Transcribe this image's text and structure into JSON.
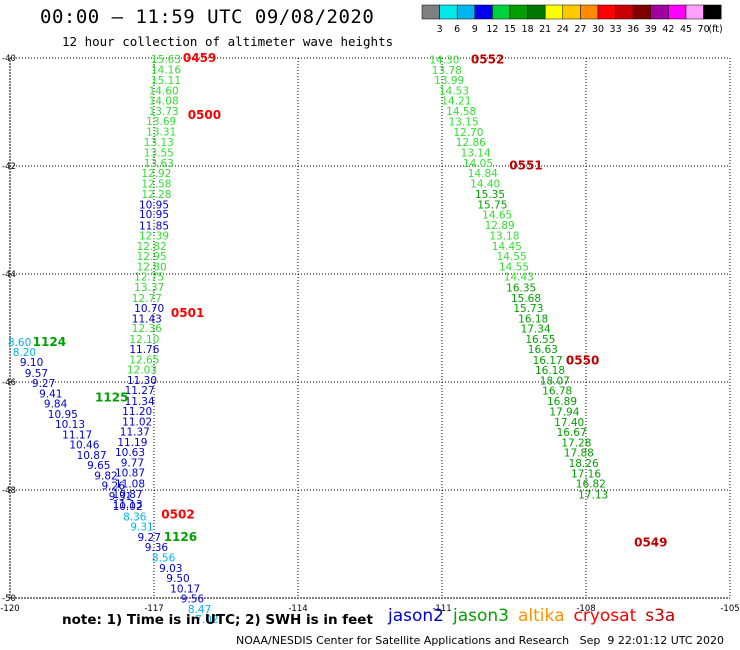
{
  "header": {
    "title": "00:00 – 11:59 UTC 09/08/2020",
    "subtitle": "12 hour collection of altimeter wave heights"
  },
  "colorbar": {
    "unit": "(ft)",
    "ticks": [
      "3",
      "6",
      "9",
      "12",
      "15",
      "18",
      "21",
      "24",
      "27",
      "30",
      "33",
      "36",
      "39",
      "42",
      "45",
      "70"
    ],
    "colors": [
      "#808080",
      "#00e8e8",
      "#00b4f0",
      "#0000f0",
      "#00d040",
      "#00a000",
      "#007800",
      "#ffff00",
      "#ffc800",
      "#ff8c00",
      "#ff0000",
      "#c80000",
      "#800000",
      "#a000a0",
      "#ff00ff",
      "#ffa0ff",
      "#000000"
    ]
  },
  "axes": {
    "lat_labels": [
      "-40",
      "-42",
      "-44",
      "-46",
      "-48",
      "-50"
    ],
    "lon_labels": [
      "-120",
      "-117",
      "-114",
      "-111",
      "-108",
      "-105"
    ]
  },
  "note": "note: 1) Time is in UTC; 2) SWH is in feet",
  "satellites": [
    {
      "name": "jason2",
      "color": "#0000d0"
    },
    {
      "name": "jason3",
      "color": "#00a000"
    },
    {
      "name": "altika",
      "color": "#ff9000"
    },
    {
      "name": "cryosat",
      "color": "#ff0000"
    },
    {
      "name": "s3a",
      "color": "#c00000"
    }
  ],
  "credit": "NOAA/NESDIS Center for Satellite Applications and Research   Sep  9 22:01:12 UTC 2020",
  "chart_data": {
    "type": "scatter",
    "title": "12 hour collection of altimeter wave heights",
    "xlabel": "",
    "ylabel": "",
    "xlim": [
      -120,
      -105
    ],
    "ylim": [
      -50,
      -40
    ],
    "unit": "ft",
    "time_labels": [
      {
        "text": "0459",
        "lon": -116.05,
        "lat": -40.0,
        "sat": "cryosat"
      },
      {
        "text": "0500",
        "lon": -115.95,
        "lat": -41.06,
        "sat": "cryosat"
      },
      {
        "text": "0501",
        "lon": -116.3,
        "lat": -44.72,
        "sat": "cryosat"
      },
      {
        "text": "0502",
        "lon": -116.5,
        "lat": -48.45,
        "sat": "cryosat"
      },
      {
        "text": "1124",
        "lon": -119.18,
        "lat": -45.26,
        "sat": "jason3"
      },
      {
        "text": "1125",
        "lon": -117.88,
        "lat": -46.29,
        "sat": "jason3"
      },
      {
        "text": "1126",
        "lon": -116.45,
        "lat": -48.87,
        "sat": "jason3"
      },
      {
        "text": "0552",
        "lon": -110.05,
        "lat": -40.03,
        "sat": "s3a"
      },
      {
        "text": "0551",
        "lon": -109.25,
        "lat": -41.99,
        "sat": "s3a"
      },
      {
        "text": "0550",
        "lon": -108.07,
        "lat": -45.6,
        "sat": "s3a"
      },
      {
        "text": "0549",
        "lon": -106.65,
        "lat": -48.97,
        "sat": "s3a"
      }
    ],
    "series": [
      {
        "name": "cryosat",
        "color": "#33dd33",
        "points": [
          {
            "lon": -116.75,
            "lat": -40.02,
            "v": "15.63"
          },
          {
            "lon": -116.75,
            "lat": -40.21,
            "v": "14.16"
          },
          {
            "lon": -116.75,
            "lat": -40.41,
            "v": "15.11"
          },
          {
            "lon": -116.8,
            "lat": -40.6,
            "v": "14.60"
          },
          {
            "lon": -116.8,
            "lat": -40.79,
            "v": "14.08"
          },
          {
            "lon": -116.8,
            "lat": -40.98,
            "v": "13.73"
          },
          {
            "lon": -116.85,
            "lat": -41.17,
            "v": "13.69"
          },
          {
            "lon": -116.85,
            "lat": -41.36,
            "v": "13.31"
          },
          {
            "lon": -116.9,
            "lat": -41.56,
            "v": "13.13"
          },
          {
            "lon": -116.9,
            "lat": -41.75,
            "v": "13.55"
          },
          {
            "lon": -116.9,
            "lat": -41.94,
            "v": "13.63"
          },
          {
            "lon": -116.95,
            "lat": -42.13,
            "v": "12.92"
          },
          {
            "lon": -116.95,
            "lat": -42.32,
            "v": "12.58"
          },
          {
            "lon": -116.95,
            "lat": -42.52,
            "v": "12.28"
          },
          {
            "lon": -117.0,
            "lat": -42.71,
            "v": "10.95",
            "color": "#0000d0"
          },
          {
            "lon": -117.0,
            "lat": -42.89,
            "v": "10.95",
            "color": "#0000d0"
          },
          {
            "lon": -117.0,
            "lat": -43.1,
            "v": "11.85",
            "color": "#0000d0"
          },
          {
            "lon": -117.0,
            "lat": -43.29,
            "v": "12.39"
          },
          {
            "lon": -117.05,
            "lat": -43.48,
            "v": "12.82"
          },
          {
            "lon": -117.05,
            "lat": -43.67,
            "v": "12.95"
          },
          {
            "lon": -117.05,
            "lat": -43.86,
            "v": "12.80"
          },
          {
            "lon": -117.1,
            "lat": -44.05,
            "v": "12.75"
          },
          {
            "lon": -117.1,
            "lat": -44.24,
            "v": "13.37"
          },
          {
            "lon": -117.15,
            "lat": -44.44,
            "v": "12.77"
          },
          {
            "lon": -117.1,
            "lat": -44.63,
            "v": "10.70",
            "color": "#0000d0"
          },
          {
            "lon": -117.15,
            "lat": -44.82,
            "v": "11.43",
            "color": "#0000d0"
          },
          {
            "lon": -117.15,
            "lat": -45.0,
            "v": "12.36"
          },
          {
            "lon": -117.2,
            "lat": -45.2,
            "v": "12.10"
          },
          {
            "lon": -117.2,
            "lat": -45.39,
            "v": "11.76",
            "color": "#0000d0"
          },
          {
            "lon": -117.2,
            "lat": -45.58,
            "v": "12.65"
          },
          {
            "lon": -117.25,
            "lat": -45.77,
            "v": "12.03"
          },
          {
            "lon": -117.25,
            "lat": -45.96,
            "v": "11.30",
            "color": "#0000d0"
          },
          {
            "lon": -117.3,
            "lat": -46.15,
            "v": "11.27",
            "color": "#0000d0"
          },
          {
            "lon": -117.3,
            "lat": -46.35,
            "v": "11.34",
            "color": "#0000d0"
          },
          {
            "lon": -117.35,
            "lat": -46.54,
            "v": "11.20",
            "color": "#0000d0"
          },
          {
            "lon": -117.35,
            "lat": -46.73,
            "v": "11.02",
            "color": "#0000d0"
          },
          {
            "lon": -117.4,
            "lat": -46.92,
            "v": "11.37",
            "color": "#0000d0"
          },
          {
            "lon": -117.45,
            "lat": -47.11,
            "v": "11.19",
            "color": "#0000d0"
          },
          {
            "lon": -117.5,
            "lat": -47.3,
            "v": "10.63",
            "color": "#0000d0"
          },
          {
            "lon": -117.45,
            "lat": -47.49,
            "v": "9.77",
            "color": "#0000d0"
          },
          {
            "lon": -117.5,
            "lat": -47.68,
            "v": "10.87",
            "color": "#0000d0"
          },
          {
            "lon": -117.5,
            "lat": -47.88,
            "v": "11.08",
            "color": "#0000d0"
          },
          {
            "lon": -117.55,
            "lat": -48.07,
            "v": "10.87",
            "color": "#0000d0"
          },
          {
            "lon": -117.55,
            "lat": -48.26,
            "v": "11.13",
            "color": "#0000d0"
          }
        ]
      },
      {
        "name": "jason3",
        "color": "#0000d0",
        "points": [
          {
            "lon": -119.8,
            "lat": -45.26,
            "v": "8.60",
            "color": "#00b4f0"
          },
          {
            "lon": -119.7,
            "lat": -45.44,
            "v": "8.20",
            "color": "#00b4f0"
          },
          {
            "lon": -119.55,
            "lat": -45.63,
            "v": "9.10"
          },
          {
            "lon": -119.45,
            "lat": -45.83,
            "v": "9.57"
          },
          {
            "lon": -119.3,
            "lat": -46.02,
            "v": "9.27"
          },
          {
            "lon": -119.15,
            "lat": -46.21,
            "v": "9.41"
          },
          {
            "lon": -119.05,
            "lat": -46.4,
            "v": "9.84"
          },
          {
            "lon": -118.9,
            "lat": -46.59,
            "v": "10.95"
          },
          {
            "lon": -118.75,
            "lat": -46.78,
            "v": "10.13"
          },
          {
            "lon": -118.6,
            "lat": -46.97,
            "v": "11.17"
          },
          {
            "lon": -118.45,
            "lat": -47.16,
            "v": "10.46"
          },
          {
            "lon": -118.3,
            "lat": -47.35,
            "v": "10.87"
          },
          {
            "lon": -118.15,
            "lat": -47.54,
            "v": "9.65"
          },
          {
            "lon": -118.0,
            "lat": -47.73,
            "v": "9.82"
          },
          {
            "lon": -117.85,
            "lat": -47.92,
            "v": "9.26"
          },
          {
            "lon": -117.7,
            "lat": -48.11,
            "v": "9.31"
          },
          {
            "lon": -117.55,
            "lat": -48.3,
            "v": "10.02"
          },
          {
            "lon": -117.4,
            "lat": -48.49,
            "v": "8.36",
            "color": "#00b4f0"
          },
          {
            "lon": -117.25,
            "lat": -48.68,
            "v": "9.31",
            "color": "#00b4f0"
          },
          {
            "lon": -117.1,
            "lat": -48.87,
            "v": "9.27"
          },
          {
            "lon": -116.95,
            "lat": -49.06,
            "v": "9.36"
          },
          {
            "lon": -116.8,
            "lat": -49.25,
            "v": "8.56",
            "color": "#00b4f0"
          },
          {
            "lon": -116.65,
            "lat": -49.44,
            "v": "9.03"
          },
          {
            "lon": -116.5,
            "lat": -49.63,
            "v": "9.50"
          },
          {
            "lon": -116.35,
            "lat": -49.82,
            "v": "10.17"
          },
          {
            "lon": -116.2,
            "lat": -50.01,
            "v": "9.56"
          },
          {
            "lon": -116.05,
            "lat": -50.2,
            "v": "8.47",
            "color": "#00b4f0"
          },
          {
            "lon": -115.9,
            "lat": -50.39,
            "v": "7.02",
            "color": "#00b4f0"
          }
        ]
      },
      {
        "name": "s3a",
        "color": "#33dd33",
        "points": [
          {
            "lon": -110.95,
            "lat": -40.03,
            "v": "14.30"
          },
          {
            "lon": -110.9,
            "lat": -40.22,
            "v": "13.78"
          },
          {
            "lon": -110.85,
            "lat": -40.41,
            "v": "13.99"
          },
          {
            "lon": -110.75,
            "lat": -40.6,
            "v": "14.53"
          },
          {
            "lon": -110.7,
            "lat": -40.79,
            "v": "14.21"
          },
          {
            "lon": -110.6,
            "lat": -40.98,
            "v": "14.58"
          },
          {
            "lon": -110.55,
            "lat": -41.18,
            "v": "13.15"
          },
          {
            "lon": -110.45,
            "lat": -41.37,
            "v": "12.70"
          },
          {
            "lon": -110.4,
            "lat": -41.56,
            "v": "12.86"
          },
          {
            "lon": -110.3,
            "lat": -41.75,
            "v": "13.14"
          },
          {
            "lon": -110.25,
            "lat": -41.94,
            "v": "14.05"
          },
          {
            "lon": -110.15,
            "lat": -42.13,
            "v": "14.84"
          },
          {
            "lon": -110.1,
            "lat": -42.32,
            "v": "14.40"
          },
          {
            "lon": -110.0,
            "lat": -42.52,
            "v": "15.35",
            "color": "#00a000"
          },
          {
            "lon": -109.95,
            "lat": -42.71,
            "v": "15.75",
            "color": "#00a000"
          },
          {
            "lon": -109.85,
            "lat": -42.9,
            "v": "14.65"
          },
          {
            "lon": -109.8,
            "lat": -43.09,
            "v": "12.89"
          },
          {
            "lon": -109.7,
            "lat": -43.29,
            "v": "13.18"
          },
          {
            "lon": -109.65,
            "lat": -43.48,
            "v": "14.45"
          },
          {
            "lon": -109.55,
            "lat": -43.67,
            "v": "14.55"
          },
          {
            "lon": -109.5,
            "lat": -43.86,
            "v": "14.55"
          },
          {
            "lon": -109.4,
            "lat": -44.05,
            "v": "14.43"
          },
          {
            "lon": -109.35,
            "lat": -44.25,
            "v": "16.35",
            "color": "#00a000"
          },
          {
            "lon": -109.25,
            "lat": -44.44,
            "v": "15.68",
            "color": "#00a000"
          },
          {
            "lon": -109.2,
            "lat": -44.63,
            "v": "15.73",
            "color": "#00a000"
          },
          {
            "lon": -109.1,
            "lat": -44.82,
            "v": "16.18",
            "color": "#00a000"
          },
          {
            "lon": -109.05,
            "lat": -45.01,
            "v": "17.34",
            "color": "#00a000"
          },
          {
            "lon": -108.95,
            "lat": -45.2,
            "v": "16.55",
            "color": "#00a000"
          },
          {
            "lon": -108.9,
            "lat": -45.39,
            "v": "16.63",
            "color": "#00a000"
          },
          {
            "lon": -108.8,
            "lat": -45.59,
            "v": "16.17",
            "color": "#00a000"
          },
          {
            "lon": -108.75,
            "lat": -45.78,
            "v": "16.18",
            "color": "#00a000"
          },
          {
            "lon": -108.65,
            "lat": -45.97,
            "v": "18.07",
            "color": "#00a000"
          },
          {
            "lon": -108.6,
            "lat": -46.16,
            "v": "16.78",
            "color": "#00a000"
          },
          {
            "lon": -108.5,
            "lat": -46.35,
            "v": "16.89",
            "color": "#00a000"
          },
          {
            "lon": -108.45,
            "lat": -46.55,
            "v": "17.94",
            "color": "#00a000"
          },
          {
            "lon": -108.35,
            "lat": -46.74,
            "v": "17.40",
            "color": "#00a000"
          },
          {
            "lon": -108.3,
            "lat": -46.93,
            "v": "16.67",
            "color": "#00a000"
          },
          {
            "lon": -108.2,
            "lat": -47.12,
            "v": "17.28",
            "color": "#00a000"
          },
          {
            "lon": -108.15,
            "lat": -47.31,
            "v": "17.88",
            "color": "#00a000"
          },
          {
            "lon": -108.05,
            "lat": -47.5,
            "v": "18.26",
            "color": "#00a000"
          },
          {
            "lon": -108.0,
            "lat": -47.69,
            "v": "17.16",
            "color": "#00a000"
          },
          {
            "lon": -107.9,
            "lat": -47.88,
            "v": "16.82",
            "color": "#00a000"
          },
          {
            "lon": -107.85,
            "lat": -48.08,
            "v": "17.13",
            "color": "#00a000"
          }
        ]
      }
    ]
  }
}
